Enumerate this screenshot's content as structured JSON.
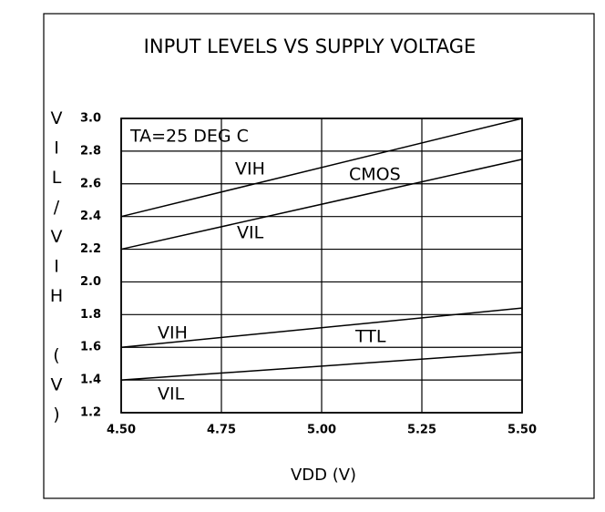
{
  "chart_data": {
    "type": "line",
    "title": "INPUT LEVELS VS SUPPLY VOLTAGE",
    "xlabel": "VDD (V)",
    "ylabel": "VIL/VIH (V)",
    "x": [
      4.5,
      5.5
    ],
    "series": [
      {
        "color": "#000000",
        "values": [
          2.4,
          3.0
        ]
      },
      {
        "color": "#000000",
        "values": [
          2.2,
          2.75
        ]
      },
      {
        "color": "#000000",
        "values": [
          1.6,
          1.84
        ]
      },
      {
        "color": "#000000",
        "values": [
          1.4,
          1.57
        ]
      }
    ],
    "annotations": [
      "TA=25 DEG C",
      "VIH",
      "CMOS",
      "VIL",
      "VIH",
      "TTL",
      "VIL"
    ],
    "xlim": [
      4.5,
      5.5
    ],
    "xticks": [
      {
        "value": 4.5,
        "label": "4.50"
      },
      4.75,
      {
        "value": 5.0,
        "label": "5.00"
      },
      5.25,
      {
        "value": 5.5,
        "label": "5.50"
      }
    ],
    "ylim": [
      1.2,
      3.0
    ],
    "yticks": [
      1.2,
      1.4,
      1.6,
      1.8,
      {
        "value": 2.0,
        "label": "2.0"
      },
      2.2,
      2.4,
      2.6,
      2.8,
      {
        "value": 3.0,
        "label": "3.0"
      }
    ],
    "grid": true
  }
}
